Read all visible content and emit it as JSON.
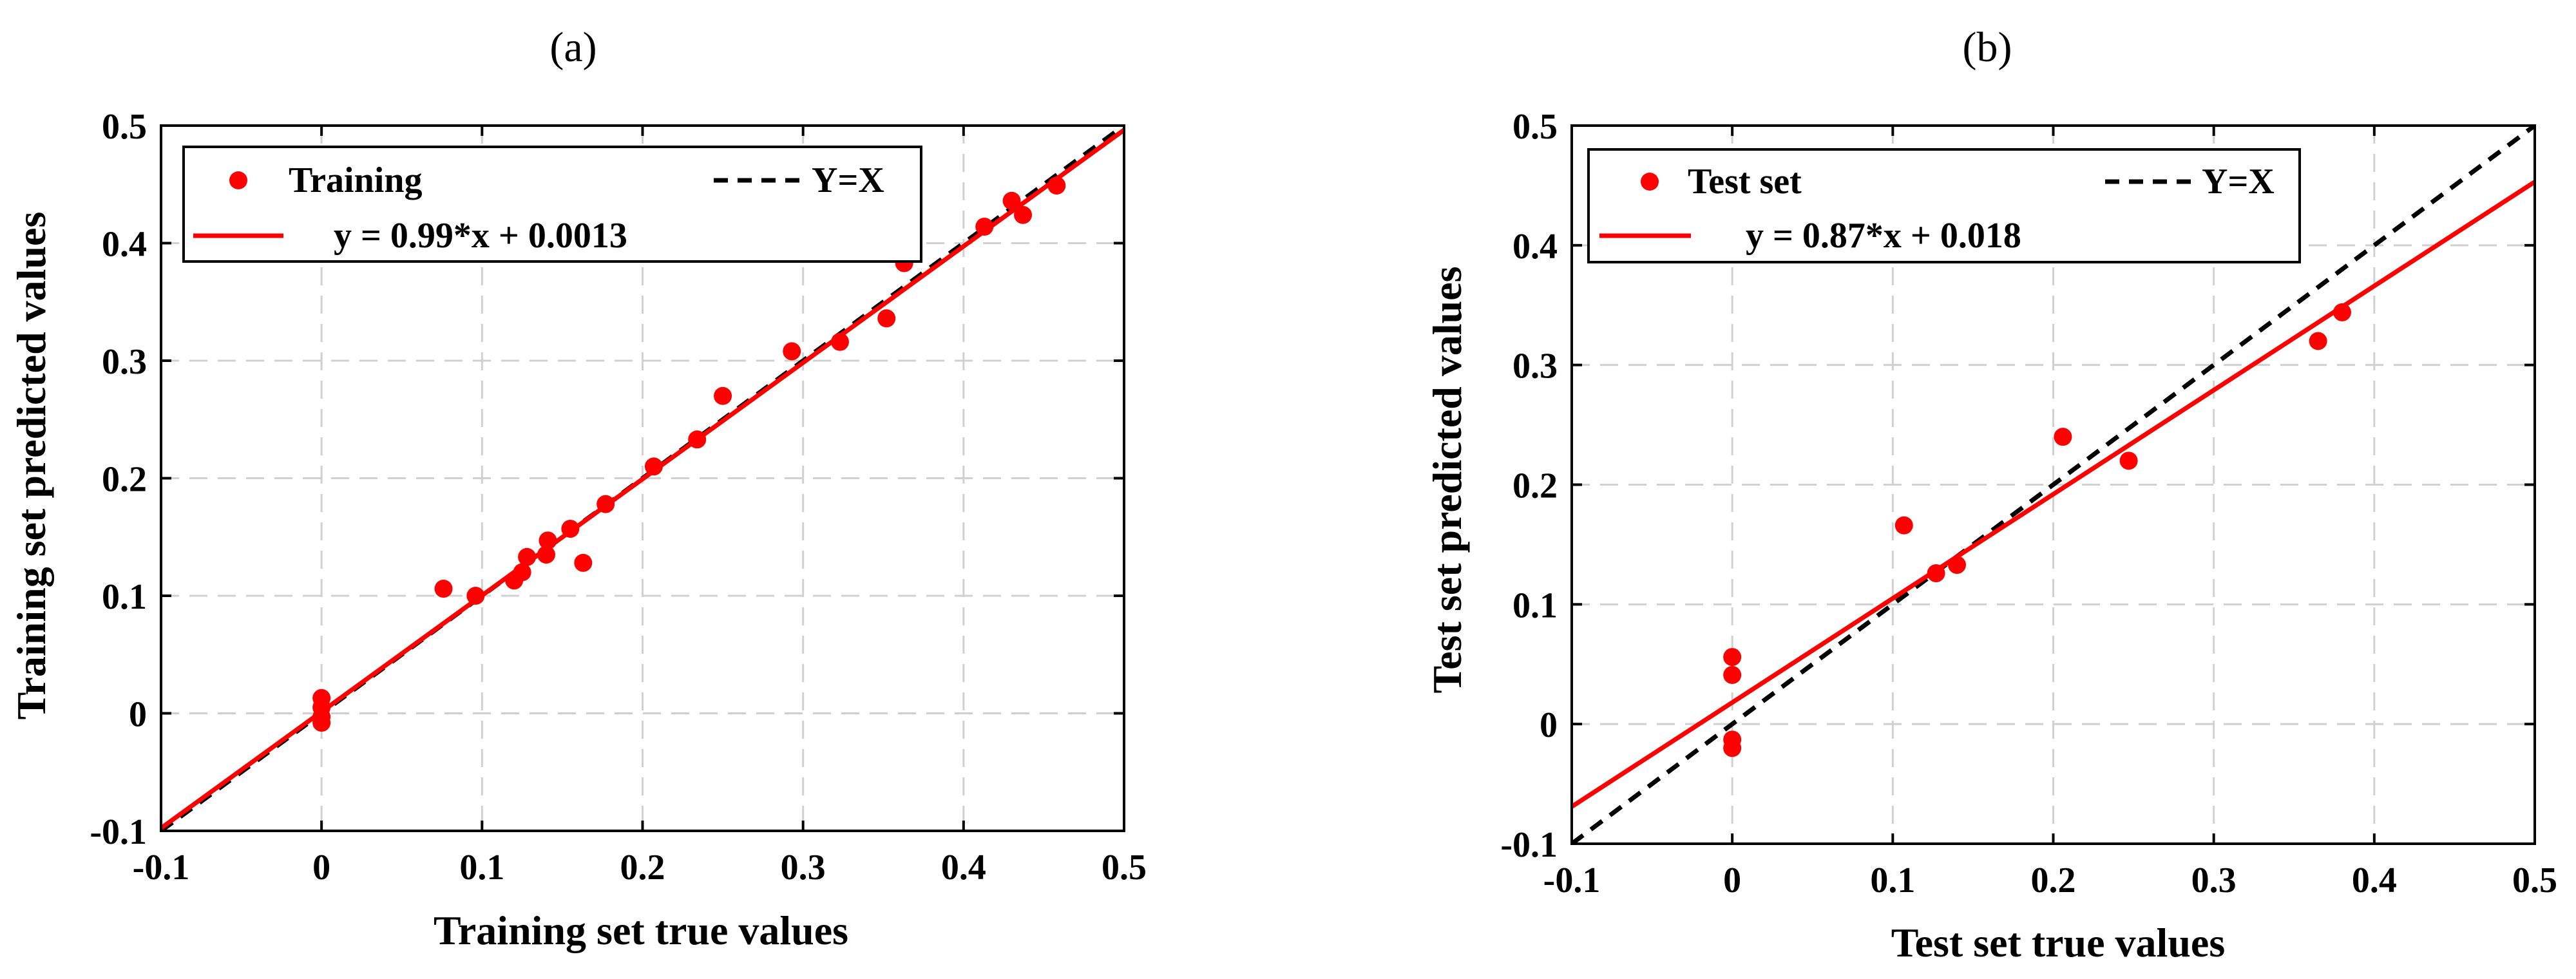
{
  "colors": {
    "points": "#ff0000",
    "fit_line": "#ff0000",
    "identity_line": "#000000",
    "grid": "#d0d0d0",
    "axes": "#000000",
    "background": "#ffffff"
  },
  "chart_data": [
    {
      "type": "scatter",
      "panel_label": "(a)",
      "xlabel": "Training set true values",
      "ylabel": "Training set predicted values",
      "xlim": [
        -0.1,
        0.5
      ],
      "ylim": [
        -0.1,
        0.5
      ],
      "xticks": [
        -0.1,
        0,
        0.1,
        0.2,
        0.3,
        0.4,
        0.5
      ],
      "yticks": [
        -0.1,
        0,
        0.1,
        0.2,
        0.3,
        0.4,
        0.5
      ],
      "xtick_labels": [
        "-0.1",
        "0",
        "0.1",
        "0.2",
        "0.3",
        "0.4",
        "0.5"
      ],
      "ytick_labels": [
        "-0.1",
        "0",
        "0.1",
        "0.2",
        "0.3",
        "0.4",
        "0.5"
      ],
      "grid": true,
      "legend_position": "top",
      "legend": {
        "points": "Training",
        "identity": "Y=X",
        "fit": "y = 0.99*x + 0.0013"
      },
      "fit": {
        "slope": 0.99,
        "intercept": 0.0013
      },
      "points": [
        {
          "x": 0.0,
          "y": 0.013
        },
        {
          "x": 0.0,
          "y": 0.005
        },
        {
          "x": 0.0,
          "y": -0.003
        },
        {
          "x": 0.0,
          "y": -0.008
        },
        {
          "x": 0.076,
          "y": 0.106
        },
        {
          "x": 0.096,
          "y": 0.1
        },
        {
          "x": 0.12,
          "y": 0.113
        },
        {
          "x": 0.125,
          "y": 0.12
        },
        {
          "x": 0.128,
          "y": 0.133
        },
        {
          "x": 0.14,
          "y": 0.135
        },
        {
          "x": 0.141,
          "y": 0.147
        },
        {
          "x": 0.155,
          "y": 0.157
        },
        {
          "x": 0.163,
          "y": 0.128
        },
        {
          "x": 0.177,
          "y": 0.178
        },
        {
          "x": 0.207,
          "y": 0.21
        },
        {
          "x": 0.234,
          "y": 0.233
        },
        {
          "x": 0.25,
          "y": 0.27
        },
        {
          "x": 0.293,
          "y": 0.308
        },
        {
          "x": 0.323,
          "y": 0.316
        },
        {
          "x": 0.352,
          "y": 0.336
        },
        {
          "x": 0.363,
          "y": 0.383
        },
        {
          "x": 0.413,
          "y": 0.414
        },
        {
          "x": 0.43,
          "y": 0.436
        },
        {
          "x": 0.437,
          "y": 0.424
        },
        {
          "x": 0.458,
          "y": 0.449
        }
      ]
    },
    {
      "type": "scatter",
      "panel_label": "(b)",
      "xlabel": "Test set true values",
      "ylabel": "Test set predicted values",
      "xlim": [
        -0.1,
        0.5
      ],
      "ylim": [
        -0.1,
        0.5
      ],
      "xticks": [
        -0.1,
        0,
        0.1,
        0.2,
        0.3,
        0.4,
        0.5
      ],
      "yticks": [
        -0.1,
        0,
        0.1,
        0.2,
        0.3,
        0.4,
        0.5
      ],
      "xtick_labels": [
        "-0.1",
        "0",
        "0.1",
        "0.2",
        "0.3",
        "0.4",
        "0.5"
      ],
      "ytick_labels": [
        "-0.1",
        "0",
        "0.1",
        "0.2",
        "0.3",
        "0.4",
        "0.5"
      ],
      "grid": true,
      "legend_position": "top",
      "legend": {
        "points": "Test set",
        "identity": "Y=X",
        "fit": "y = 0.87*x + 0.018"
      },
      "fit": {
        "slope": 0.87,
        "intercept": 0.018
      },
      "points": [
        {
          "x": 0.0,
          "y": 0.056
        },
        {
          "x": 0.0,
          "y": 0.041
        },
        {
          "x": 0.0,
          "y": -0.013
        },
        {
          "x": 0.0,
          "y": -0.02
        },
        {
          "x": 0.107,
          "y": 0.166
        },
        {
          "x": 0.127,
          "y": 0.126
        },
        {
          "x": 0.14,
          "y": 0.133
        },
        {
          "x": 0.206,
          "y": 0.24
        },
        {
          "x": 0.247,
          "y": 0.22
        },
        {
          "x": 0.365,
          "y": 0.32
        },
        {
          "x": 0.38,
          "y": 0.344
        }
      ]
    }
  ]
}
